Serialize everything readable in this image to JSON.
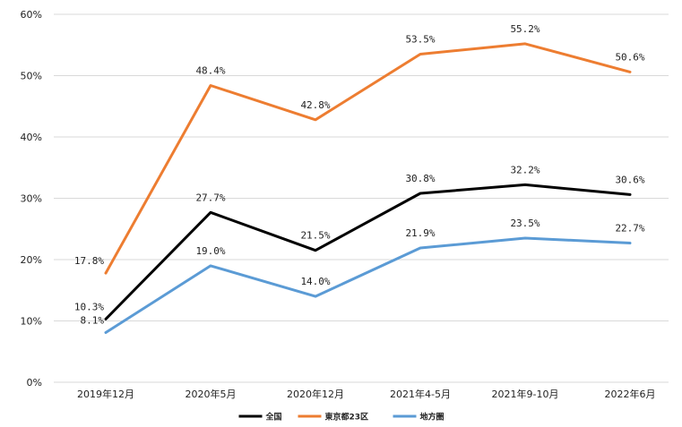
{
  "chart_data": {
    "type": "line",
    "categories": [
      "2019年12月",
      "2020年5月",
      "2020年12月",
      "2021年4-5月",
      "2021年9-10月",
      "2022年6月"
    ],
    "series": [
      {
        "name": "全国",
        "color": "#000000",
        "values": [
          10.3,
          27.7,
          21.5,
          30.8,
          32.2,
          30.6
        ],
        "labels": [
          "10.3%",
          "27.7%",
          "21.5%",
          "30.8%",
          "32.2%",
          "30.6%"
        ]
      },
      {
        "name": "東京都23区",
        "color": "#ed7d31",
        "values": [
          17.8,
          48.4,
          42.8,
          53.5,
          55.2,
          50.6
        ],
        "labels": [
          "17.8%",
          "48.4%",
          "42.8%",
          "53.5%",
          "55.2%",
          "50.6%"
        ]
      },
      {
        "name": "地方圏",
        "color": "#5b9bd5",
        "values": [
          8.1,
          19.0,
          14.0,
          21.9,
          23.5,
          22.7
        ],
        "labels": [
          "8.1%",
          "19.0%",
          "14.0%",
          "21.9%",
          "23.5%",
          "22.7%"
        ]
      }
    ],
    "yticks": [
      "0%",
      "10%",
      "20%",
      "30%",
      "40%",
      "50%",
      "60%"
    ],
    "ylim": [
      0,
      60
    ],
    "grid": true,
    "legend_position": "bottom"
  }
}
